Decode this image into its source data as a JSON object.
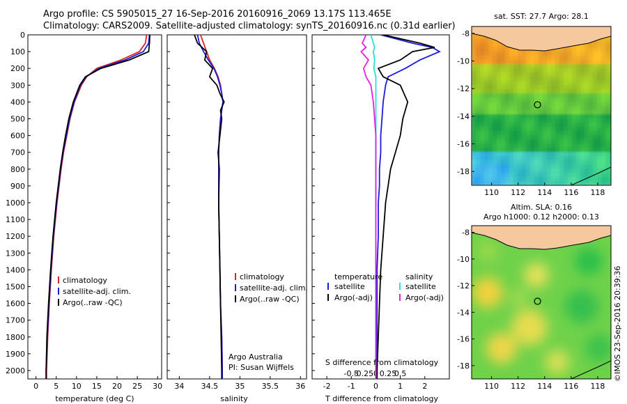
{
  "header": {
    "line1": "Argo profile: CS 5905015_27 16-Sep-2016 20160916_2069 13.17S 113.465E",
    "line2": "Climatology: CARS2009. Satellite-adjusted climatology: synTS_20160916.nc (0.31d earlier)"
  },
  "colors": {
    "climatology": "#e02020",
    "satellite": "#1a1adc",
    "argo": "#000000",
    "argo_salinity": "#e020e0",
    "sat_salinity": "#20e0e0",
    "land": "#f6c89e"
  },
  "depth_axis": {
    "ticks": [
      "0",
      "100",
      "200",
      "300",
      "400",
      "500",
      "600",
      "700",
      "800",
      "900",
      "1000",
      "1100",
      "1200",
      "1300",
      "1400",
      "1500",
      "1600",
      "1700",
      "1800",
      "1900",
      "2000"
    ],
    "ylim": [
      0,
      2050
    ]
  },
  "panels": {
    "temperature": {
      "xlabel": "temperature (deg C)",
      "xticks": [
        "0",
        "5",
        "10",
        "15",
        "20",
        "25",
        "30"
      ],
      "legend": [
        "climatology",
        "satellite-adj. clim.",
        "Argo(..raw -QC)"
      ]
    },
    "salinity": {
      "xlabel": "salinity",
      "xticks": [
        "34",
        "34.5",
        "35",
        "35.5",
        "36"
      ],
      "legend": [
        "climatology",
        "satellite-adj. clim.",
        "Argo(..raw -QC)"
      ],
      "note1": "Argo Australia",
      "note2": "PI: Susan Wijffels"
    },
    "difference": {
      "xlabel": "T difference from climatology",
      "x2label": "S difference from climatology",
      "xticks": [
        "-2",
        "-1",
        "0",
        "1",
        "2"
      ],
      "x2ticks": [
        "-0.5",
        "-0.25",
        "0",
        "0.25",
        "0.5"
      ],
      "temp_legend_title": "temperature",
      "sal_legend_title": "salinity",
      "temp_legend": [
        "satellite",
        "Argo(-adj)"
      ],
      "sal_legend": [
        "satellite",
        "Argo(-adj)"
      ]
    }
  },
  "maps": {
    "sst_title": "sat. SST: 27.7 Argo: 28.1",
    "sla_title1": "Altim. SLA: 0.16",
    "sla_title2": "Argo h1000: 0.12 h2000: 0.13",
    "lon_ticks": [
      "110",
      "112",
      "114",
      "116",
      "118"
    ],
    "lat_ticks": [
      "-8",
      "-10",
      "-12",
      "-14",
      "-16",
      "-18"
    ]
  },
  "footer": {
    "stamp": "©IMOS 23-Sep-2016 20:39:36"
  },
  "chart_data": [
    {
      "type": "line",
      "title": "",
      "xlabel": "temperature (deg C)",
      "ylabel": "",
      "xlim": [
        -2,
        31
      ],
      "ylim": [
        2050,
        0
      ],
      "depth": [
        0,
        50,
        100,
        150,
        200,
        250,
        300,
        400,
        500,
        600,
        700,
        800,
        900,
        1000,
        1200,
        1400,
        1600,
        1800,
        2000,
        2050
      ],
      "series": [
        {
          "name": "climatology",
          "values": [
            27.3,
            27,
            25.5,
            21,
            15,
            12.5,
            11.2,
            9.5,
            8.4,
            7.6,
            6.8,
            6.2,
            5.7,
            5.2,
            4.4,
            3.8,
            3.3,
            2.9,
            2.6,
            2.6
          ]
        },
        {
          "name": "satellite-adj. clim.",
          "values": [
            28,
            27.8,
            26.5,
            22,
            15.5,
            12.4,
            11,
            9.4,
            8.3,
            7.5,
            6.7,
            6.1,
            5.6,
            5.1,
            4.3,
            3.7,
            3.2,
            2.8,
            2.5,
            2.5
          ]
        },
        {
          "name": "Argo(..raw -QC)",
          "values": [
            28.1,
            28,
            27.8,
            23,
            16,
            12.2,
            10.8,
            9.2,
            8.1,
            7.3,
            6.6,
            6,
            5.5,
            5,
            4.2,
            3.6,
            3.1,
            2.7,
            2.5,
            2.5
          ]
        }
      ]
    },
    {
      "type": "line",
      "title": "",
      "xlabel": "salinity",
      "ylabel": "",
      "xlim": [
        33.8,
        36.1
      ],
      "ylim": [
        2050,
        0
      ],
      "depth": [
        0,
        50,
        100,
        150,
        200,
        250,
        300,
        350,
        400,
        450,
        500,
        600,
        700,
        800,
        1000,
        1200,
        1400,
        1600,
        1800,
        2000,
        2050
      ],
      "series": [
        {
          "name": "climatology",
          "values": [
            34.35,
            34.4,
            34.45,
            34.5,
            34.58,
            34.64,
            34.68,
            34.7,
            34.72,
            34.7,
            34.68,
            34.66,
            34.65,
            34.65,
            34.65,
            34.66,
            34.67,
            34.68,
            34.7,
            34.71,
            34.71
          ]
        },
        {
          "name": "satellite-adj. clim.",
          "values": [
            34.3,
            34.33,
            34.4,
            34.48,
            34.57,
            34.63,
            34.67,
            34.7,
            34.72,
            34.7,
            34.68,
            34.66,
            34.65,
            34.65,
            34.65,
            34.66,
            34.67,
            34.68,
            34.7,
            34.71,
            34.71
          ]
        },
        {
          "name": "Argo(..raw -QC)",
          "values": [
            34.25,
            34.3,
            34.45,
            34.42,
            34.55,
            34.5,
            34.62,
            34.67,
            34.74,
            34.68,
            34.7,
            34.67,
            34.64,
            34.66,
            34.65,
            34.66,
            34.67,
            34.68,
            34.69,
            34.7,
            34.7
          ]
        }
      ]
    },
    {
      "type": "line",
      "title": "",
      "xlabel": "T difference from climatology",
      "ylabel": "",
      "xlim": [
        -2.6,
        3.0
      ],
      "ylim": [
        2050,
        0
      ],
      "depth": [
        0,
        50,
        75,
        100,
        150,
        200,
        250,
        300,
        400,
        500,
        600,
        700,
        800,
        900,
        1000,
        1200,
        1400,
        1600,
        1800,
        2000,
        2050
      ],
      "series": [
        {
          "name": "satellite",
          "values": [
            0.2,
            1.5,
            2.3,
            2.6,
            1.8,
            1.2,
            0.5,
            0.4,
            0.3,
            0.25,
            0.2,
            0.2,
            0.15,
            0.15,
            0.1,
            0.1,
            0.05,
            0.05,
            0.05,
            0.05,
            0.05
          ]
        },
        {
          "name": "Argo(-adj)",
          "values": [
            0.3,
            1.8,
            2.4,
            1.5,
            1.0,
            0.1,
            0.3,
            1.0,
            1.3,
            1.1,
            1.0,
            0.8,
            0.6,
            0.5,
            0.4,
            0.3,
            0.2,
            0.15,
            0.1,
            0.05,
            0.05
          ]
        },
        {
          "name": "satellite (salinity)",
          "values": [
            -0.2,
            -0.1,
            -0.05,
            -0.1,
            -0.05,
            -0.08,
            0,
            0,
            0,
            0,
            0,
            0,
            0,
            0,
            0,
            0,
            0,
            0,
            0,
            0,
            0
          ]
        },
        {
          "name": "Argo(-adj) (salinity)",
          "values": [
            -0.4,
            -0.55,
            -0.4,
            -0.6,
            -0.3,
            -0.5,
            -0.4,
            -0.2,
            -0.1,
            -0.05,
            0,
            0,
            0,
            0,
            0,
            0,
            0,
            0,
            0,
            0,
            0
          ]
        }
      ]
    },
    {
      "type": "heatmap",
      "title": "sat. SST: 27.7 Argo: 28.1",
      "xlim": [
        108.5,
        119
      ],
      "ylim": [
        -19,
        -7.5
      ],
      "argo_position": [
        113.465,
        -13.17
      ]
    },
    {
      "type": "heatmap",
      "title": "Altim. SLA: 0.16",
      "xlim": [
        108.5,
        119
      ],
      "ylim": [
        -19,
        -7.5
      ],
      "argo_position": [
        113.465,
        -13.17
      ]
    }
  ]
}
